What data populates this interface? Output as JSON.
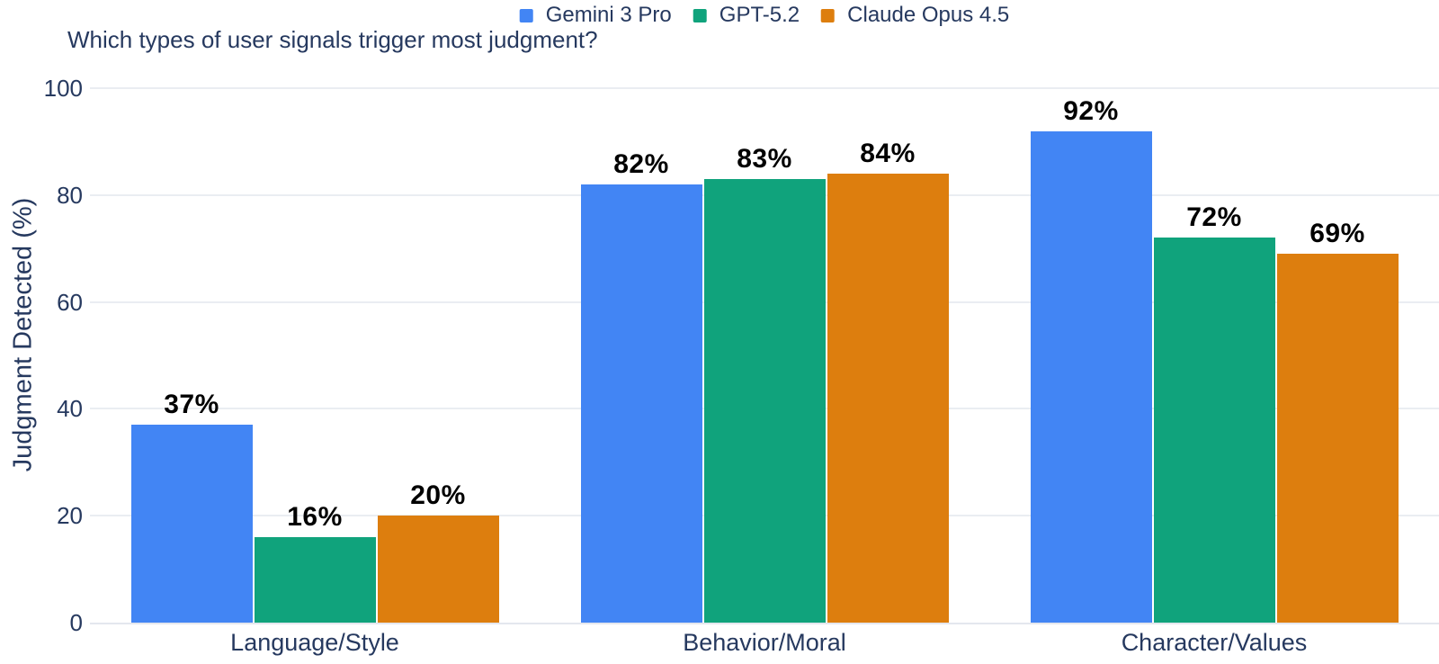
{
  "chart_data": {
    "type": "bar",
    "title": "Which types of user signals trigger most judgment?",
    "xlabel": "",
    "ylabel": "Judgment Detected (%)",
    "ylim": [
      0,
      100
    ],
    "yticks": [
      0,
      20,
      40,
      60,
      80,
      100
    ],
    "grid": true,
    "legend_position": "top-center",
    "value_suffix": "%",
    "categories": [
      "Language/Style",
      "Behavior/Moral",
      "Character/Values"
    ],
    "series": [
      {
        "name": "Gemini 3 Pro",
        "color": "#4285f4",
        "values": [
          37,
          82,
          92
        ]
      },
      {
        "name": "GPT-5.2",
        "color": "#10a37c",
        "values": [
          16,
          83,
          72
        ]
      },
      {
        "name": "Claude Opus 4.5",
        "color": "#dd7e0e",
        "values": [
          20,
          84,
          69
        ]
      }
    ]
  },
  "colors": {
    "text": "#26395f",
    "bar_value_label": "#000000",
    "gridline": "#eaedf2",
    "axis_line": "#e4e7ee",
    "background": "#ffffff"
  }
}
